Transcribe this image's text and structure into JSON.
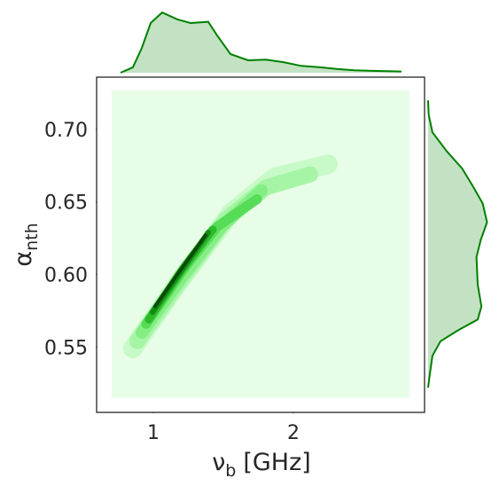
{
  "chart_data": {
    "type": "jointkde",
    "x_label": {
      "symbol": "ν",
      "subscript": "b",
      "unit": "[GHz]"
    },
    "y_label": {
      "symbol": "α",
      "subscript": "nth"
    },
    "xlim": [
      0.595,
      2.937
    ],
    "ylim": [
      0.505,
      0.736
    ],
    "xticks": [
      1,
      2
    ],
    "yticks": [
      0.55,
      {
        "value": 0.6,
        "label": "0.60"
      },
      0.65,
      {
        "value": 0.7,
        "label": "0.70"
      }
    ],
    "support": {
      "x": [
        0.703,
        2.83
      ],
      "y": [
        0.515,
        0.727
      ],
      "color": "#e8fde8"
    },
    "levels": [
      {
        "color": "#c8fac8",
        "x": [
          0.854,
          1.171,
          1.551,
          1.867,
          2.247
        ],
        "y": [
          0.549,
          0.593,
          0.642,
          0.667,
          0.676
        ]
      },
      {
        "color": "#a6f5a6",
        "x": [
          0.886,
          1.171,
          1.519,
          1.804,
          2.12
        ],
        "y": [
          0.554,
          0.593,
          0.638,
          0.66,
          0.669
        ]
      },
      {
        "color": "#84ee84",
        "x": [
          0.918,
          1.203,
          1.487,
          1.772
        ],
        "y": [
          0.56,
          0.598,
          0.633,
          0.658
        ]
      },
      {
        "color": "#56dc56",
        "x": [
          0.949,
          1.234,
          1.456,
          1.741
        ],
        "y": [
          0.566,
          0.606,
          0.633,
          0.652
        ]
      },
      {
        "color": "#2cba2c",
        "x": [
          0.968,
          1.203,
          1.424
        ],
        "y": [
          0.569,
          0.603,
          0.631
        ]
      },
      {
        "color": "#108c10",
        "x": [
          0.994,
          1.203,
          1.392
        ],
        "y": [
          0.574,
          0.603,
          0.629
        ]
      },
      {
        "color": "#0a4a0a",
        "x": [
          1.013,
          1.171,
          1.373
        ],
        "y": [
          0.578,
          0.6,
          0.627
        ]
      }
    ],
    "top_marginal": {
      "color": "#008000",
      "fill": "#c3e2c3",
      "x": [
        0.766,
        0.854,
        0.918,
        0.981,
        1.063,
        1.171,
        1.266,
        1.392,
        1.456,
        1.551,
        1.677,
        1.804,
        1.93,
        2.057,
        2.184,
        2.31,
        2.437,
        2.563,
        2.772
      ],
      "density": [
        0,
        0.086,
        0.4,
        0.8,
        0.97,
        0.86,
        0.8,
        0.82,
        0.6,
        0.3,
        0.2,
        0.21,
        0.17,
        0.11,
        0.09,
        0.06,
        0.04,
        0.03,
        0.02
      ]
    },
    "right_marginal": {
      "color": "#008000",
      "fill": "#c3e2c3",
      "y": [
        0.522,
        0.532,
        0.544,
        0.554,
        0.562,
        0.569,
        0.578,
        0.593,
        0.612,
        0.624,
        0.636,
        0.649,
        0.661,
        0.673,
        0.685,
        0.698,
        0.71,
        0.72
      ],
      "density": [
        0,
        0.03,
        0.07,
        0.2,
        0.5,
        0.8,
        0.86,
        0.8,
        0.78,
        0.85,
        0.95,
        0.88,
        0.72,
        0.55,
        0.3,
        0.07,
        0.01,
        0
      ]
    }
  }
}
